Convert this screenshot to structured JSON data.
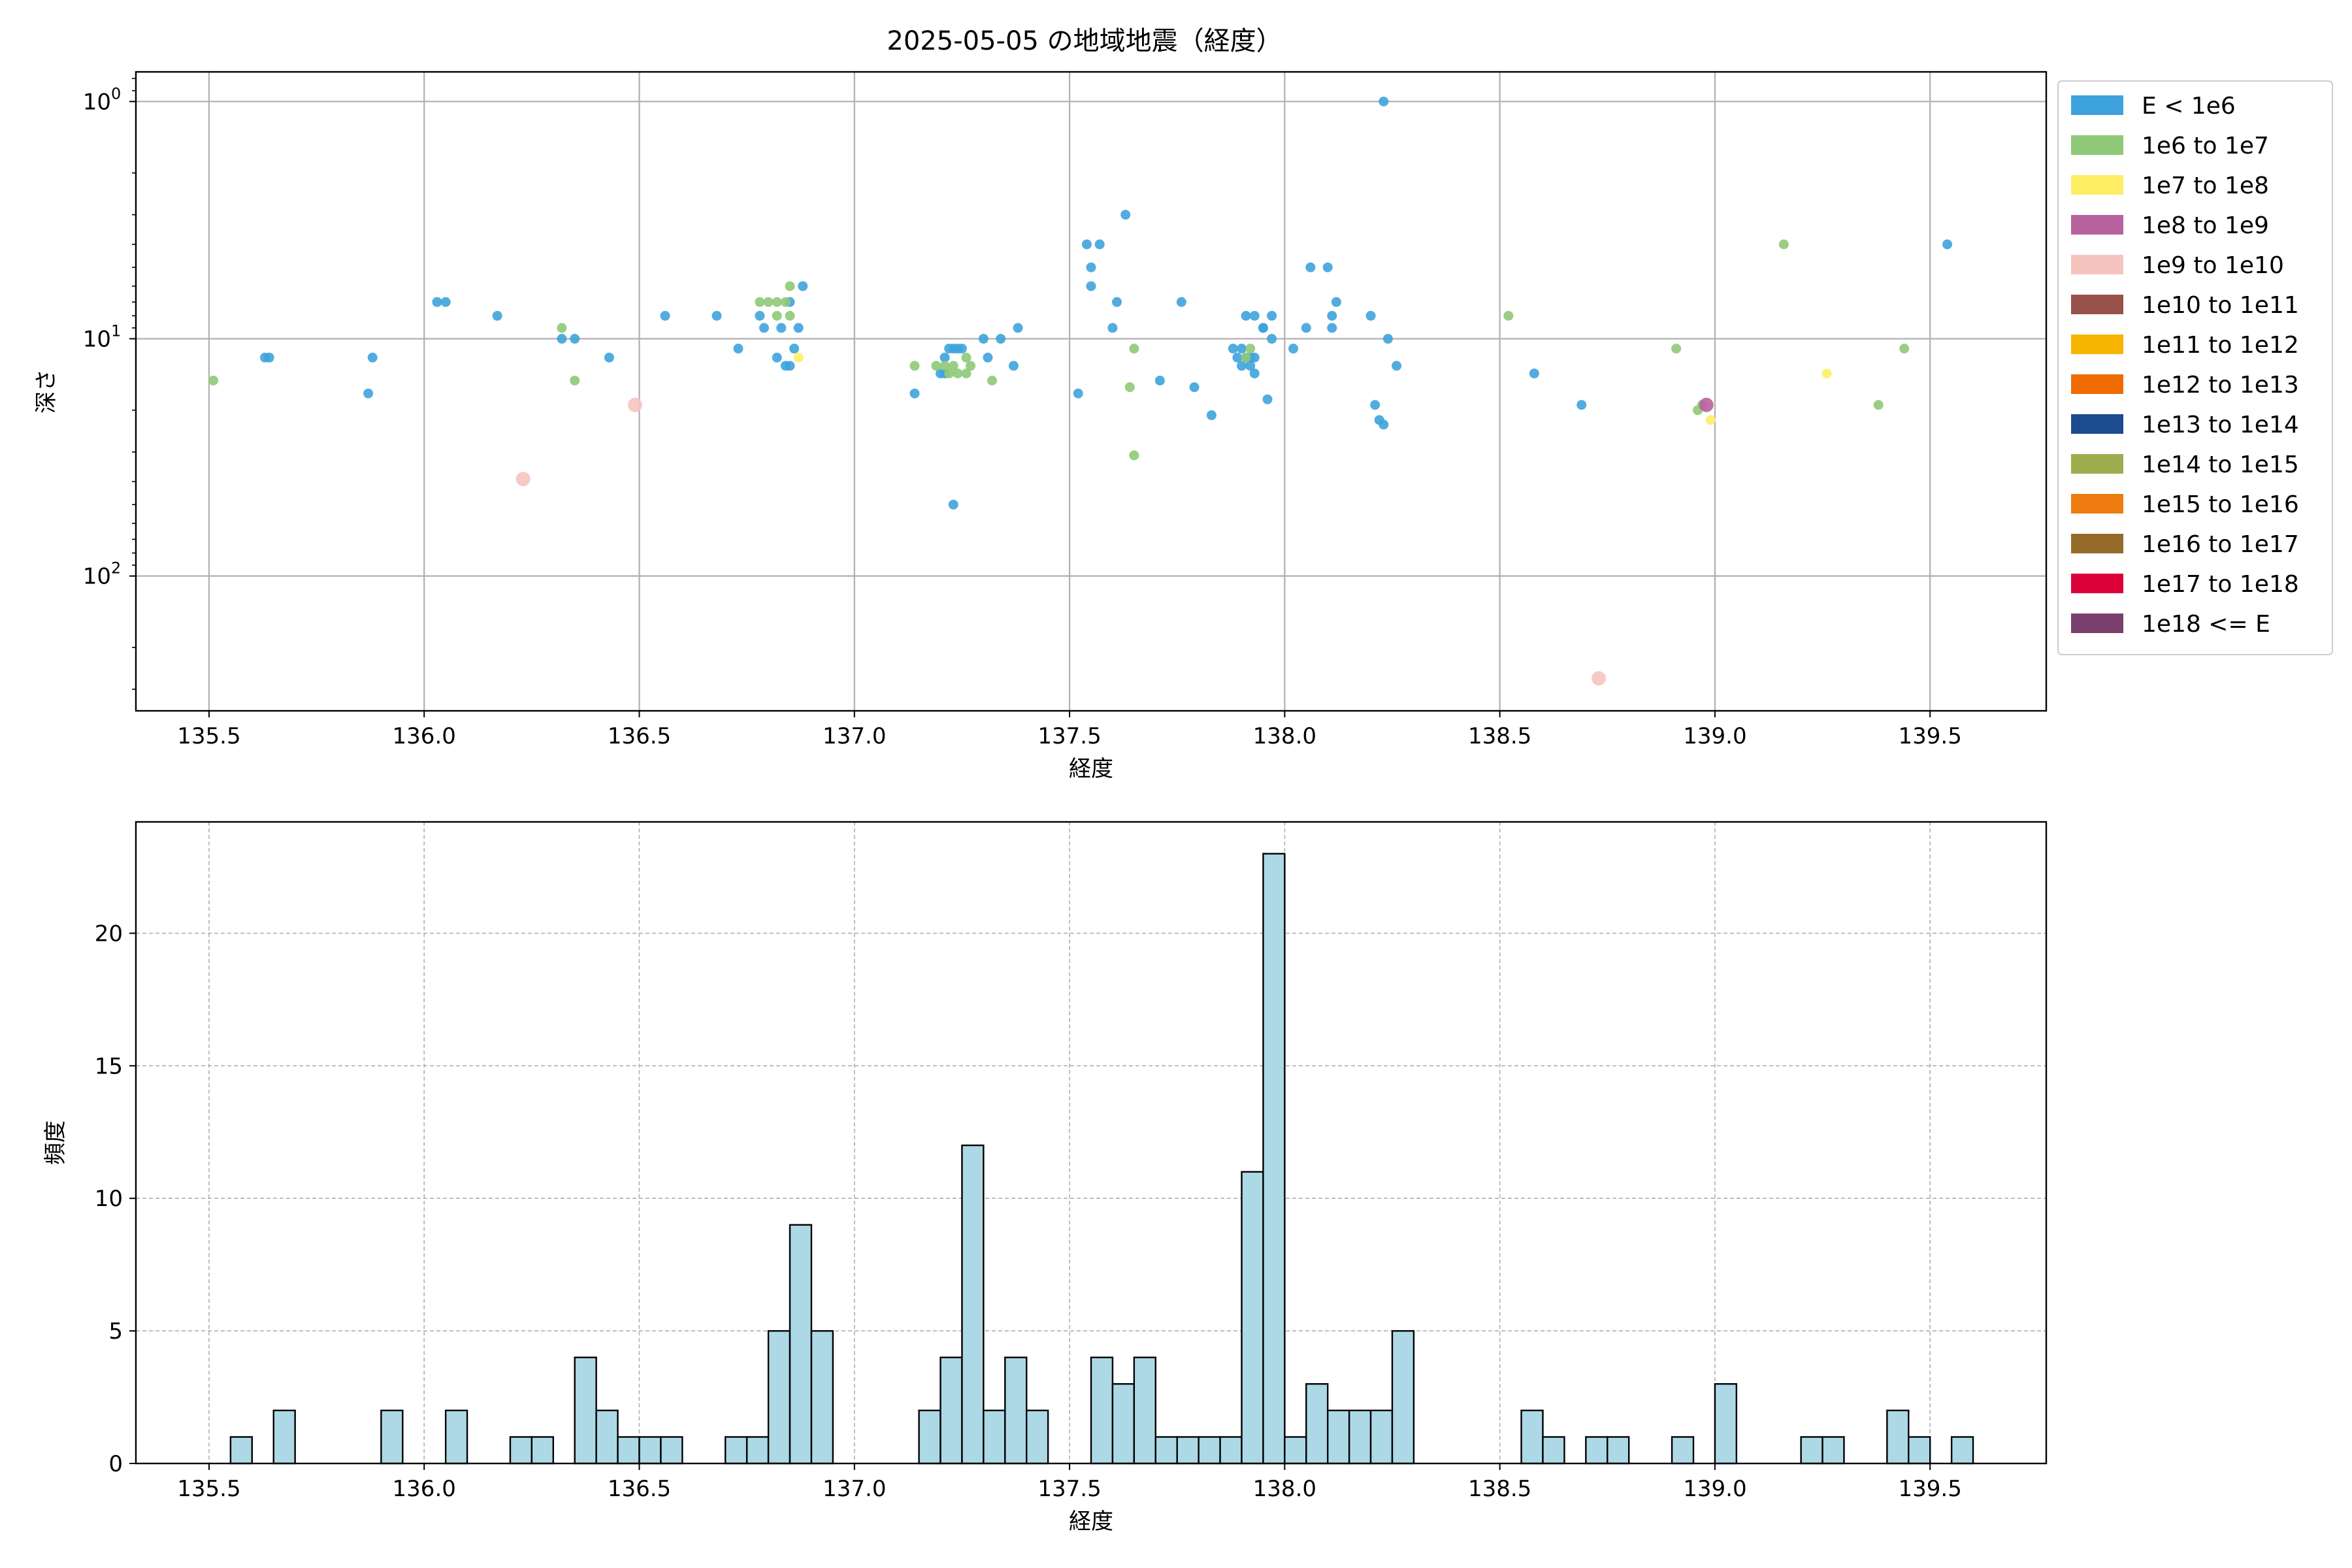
{
  "figure_title": "2025-05-05 の地域地震（経度）",
  "colors": {
    "grid": "#b0b0b0",
    "hist_fill": "#add8e6",
    "hist_edge": "#000000"
  },
  "legend": {
    "placement": "right, outside top-right",
    "entries": [
      {
        "label": "E < 1e6",
        "color": "#3ea3dc"
      },
      {
        "label": "1e6 to 1e7",
        "color": "#8fc977"
      },
      {
        "label": "1e7 to 1e8",
        "color": "#fdee65"
      },
      {
        "label": "1e8 to 1e9",
        "color": "#b8619f"
      },
      {
        "label": "1e9 to 1e10",
        "color": "#f6c4bf"
      },
      {
        "label": "1e10 to 1e11",
        "color": "#985249"
      },
      {
        "label": "1e11 to 1e12",
        "color": "#f7b400"
      },
      {
        "label": "1e12 to 1e13",
        "color": "#ef6a00"
      },
      {
        "label": "1e13 to 1e14",
        "color": "#1c4b8f"
      },
      {
        "label": "1e14 to 1e15",
        "color": "#9cad4e"
      },
      {
        "label": "1e15 to 1e16",
        "color": "#ee7c0e"
      },
      {
        "label": "1e16 to 1e17",
        "color": "#956b29"
      },
      {
        "label": "1e17 to 1e18",
        "color": "#dc0039"
      },
      {
        "label": "1e18 <= E",
        "color": "#7b3f6e"
      }
    ]
  },
  "chart_data": [
    {
      "type": "scatter",
      "title": "2025-05-05 の地域地震（経度）",
      "xlabel": "経度",
      "ylabel": "深さ",
      "yscale": "log",
      "yaxis_inverted": true,
      "xlim": [
        135.33,
        139.77
      ],
      "ylim": [
        370,
        0.75
      ],
      "xticks": [
        135.5,
        136.0,
        136.5,
        137.0,
        137.5,
        138.0,
        138.5,
        139.0,
        139.5
      ],
      "xtick_labels": [
        "135.5",
        "136.0",
        "136.5",
        "137.0",
        "137.5",
        "138.0",
        "138.5",
        "139.0",
        "139.5"
      ],
      "yticks": [
        1,
        10,
        100
      ],
      "ytick_labels": [
        [
          "10",
          "0"
        ],
        [
          "10",
          "1"
        ],
        [
          "10",
          "2"
        ]
      ],
      "grid": true,
      "series": [
        {
          "name": "E < 1e6",
          "points": [
            [
              135.63,
              12
            ],
            [
              135.64,
              12
            ],
            [
              135.87,
              17
            ],
            [
              135.88,
              12
            ],
            [
              136.03,
              7
            ],
            [
              136.05,
              7
            ],
            [
              136.17,
              8
            ],
            [
              136.32,
              10
            ],
            [
              136.35,
              10
            ],
            [
              136.43,
              12
            ],
            [
              136.56,
              8
            ],
            [
              136.68,
              8
            ],
            [
              136.73,
              11
            ],
            [
              136.78,
              8
            ],
            [
              136.79,
              9
            ],
            [
              136.82,
              12
            ],
            [
              136.83,
              9
            ],
            [
              136.84,
              13
            ],
            [
              136.85,
              13
            ],
            [
              136.85,
              7
            ],
            [
              136.86,
              11
            ],
            [
              136.87,
              9
            ],
            [
              136.88,
              6
            ],
            [
              137.14,
              17
            ],
            [
              137.2,
              14
            ],
            [
              137.21,
              12
            ],
            [
              137.22,
              11
            ],
            [
              137.23,
              11
            ],
            [
              137.24,
              11
            ],
            [
              137.25,
              11
            ],
            [
              137.21,
              14
            ],
            [
              137.23,
              50
            ],
            [
              137.3,
              10
            ],
            [
              137.31,
              12
            ],
            [
              137.34,
              10
            ],
            [
              137.37,
              13
            ],
            [
              137.38,
              9
            ],
            [
              137.52,
              17
            ],
            [
              137.54,
              4
            ],
            [
              137.55,
              6
            ],
            [
              137.55,
              5
            ],
            [
              137.57,
              4
            ],
            [
              137.6,
              9
            ],
            [
              137.61,
              7
            ],
            [
              137.63,
              3
            ],
            [
              137.71,
              15
            ],
            [
              137.76,
              7
            ],
            [
              137.79,
              16
            ],
            [
              137.83,
              21
            ],
            [
              137.88,
              11
            ],
            [
              137.89,
              12
            ],
            [
              137.9,
              13
            ],
            [
              137.9,
              11
            ],
            [
              137.91,
              12
            ],
            [
              137.91,
              8
            ],
            [
              137.92,
              12
            ],
            [
              137.92,
              13
            ],
            [
              137.93,
              14
            ],
            [
              137.93,
              12
            ],
            [
              137.93,
              8
            ],
            [
              137.95,
              9
            ],
            [
              137.95,
              9
            ],
            [
              137.96,
              18
            ],
            [
              137.97,
              10
            ],
            [
              137.97,
              8
            ],
            [
              138.02,
              11
            ],
            [
              138.05,
              9
            ],
            [
              138.06,
              5
            ],
            [
              138.1,
              5
            ],
            [
              138.11,
              8
            ],
            [
              138.11,
              9
            ],
            [
              138.12,
              7
            ],
            [
              138.2,
              8
            ],
            [
              138.21,
              19
            ],
            [
              138.22,
              22
            ],
            [
              138.23,
              23
            ],
            [
              138.23,
              1
            ],
            [
              138.24,
              10
            ],
            [
              138.26,
              13
            ],
            [
              138.58,
              14
            ],
            [
              138.69,
              19
            ],
            [
              139.54,
              4
            ]
          ]
        },
        {
          "name": "1e6 to 1e7",
          "points": [
            [
              135.51,
              15
            ],
            [
              136.32,
              9
            ],
            [
              136.35,
              15
            ],
            [
              136.78,
              7
            ],
            [
              136.8,
              7
            ],
            [
              136.82,
              7
            ],
            [
              136.82,
              8
            ],
            [
              136.84,
              7
            ],
            [
              136.85,
              8
            ],
            [
              136.85,
              6
            ],
            [
              137.14,
              13
            ],
            [
              137.19,
              13
            ],
            [
              137.21,
              13
            ],
            [
              137.22,
              14
            ],
            [
              137.23,
              13
            ],
            [
              137.24,
              14
            ],
            [
              137.26,
              12
            ],
            [
              137.26,
              14
            ],
            [
              137.27,
              13
            ],
            [
              137.32,
              15
            ],
            [
              137.64,
              16
            ],
            [
              137.65,
              11
            ],
            [
              137.65,
              31
            ],
            [
              137.91,
              12
            ],
            [
              137.92,
              11
            ],
            [
              138.52,
              8
            ],
            [
              138.91,
              11
            ],
            [
              138.96,
              20
            ],
            [
              138.97,
              19
            ],
            [
              139.16,
              4
            ],
            [
              139.38,
              19
            ],
            [
              139.44,
              11
            ]
          ]
        },
        {
          "name": "1e7 to 1e8",
          "points": [
            [
              136.87,
              12
            ],
            [
              138.99,
              22
            ],
            [
              139.26,
              14
            ]
          ]
        },
        {
          "name": "1e8 to 1e9",
          "points": [
            [
              138.98,
              19
            ]
          ]
        },
        {
          "name": "1e9 to 1e10",
          "points": [
            [
              136.23,
              39
            ],
            [
              136.49,
              19
            ],
            [
              138.73,
              270
            ]
          ]
        }
      ]
    },
    {
      "type": "bar",
      "subtype": "histogram",
      "xlabel": "経度",
      "ylabel": "頻度",
      "xlim": [
        135.33,
        139.77
      ],
      "ylim": [
        0,
        24.2
      ],
      "xticks": [
        135.5,
        136.0,
        136.5,
        137.0,
        137.5,
        138.0,
        138.5,
        139.0,
        139.5
      ],
      "xtick_labels": [
        "135.5",
        "136.0",
        "136.5",
        "137.0",
        "137.5",
        "138.0",
        "138.5",
        "139.0",
        "139.5"
      ],
      "yticks": [
        0,
        5,
        10,
        15,
        20
      ],
      "ytick_labels": [
        "0",
        "5",
        "10",
        "15",
        "20"
      ],
      "grid": true,
      "bin_start": 135.5,
      "bin_width": 0.05,
      "values": [
        0,
        1,
        0,
        2,
        0,
        0,
        0,
        0,
        2,
        0,
        0,
        2,
        0,
        0,
        1,
        1,
        0,
        4,
        2,
        1,
        1,
        1,
        0,
        0,
        1,
        1,
        5,
        9,
        5,
        0,
        0,
        0,
        0,
        2,
        4,
        12,
        2,
        4,
        2,
        0,
        0,
        4,
        3,
        4,
        1,
        1,
        1,
        1,
        11,
        23,
        1,
        3,
        2,
        2,
        2,
        5,
        0,
        0,
        0,
        0,
        0,
        2,
        1,
        0,
        1,
        1,
        0,
        0,
        1,
        0,
        3,
        0,
        0,
        0,
        1,
        1,
        0,
        0,
        2,
        1,
        0,
        1
      ]
    }
  ]
}
